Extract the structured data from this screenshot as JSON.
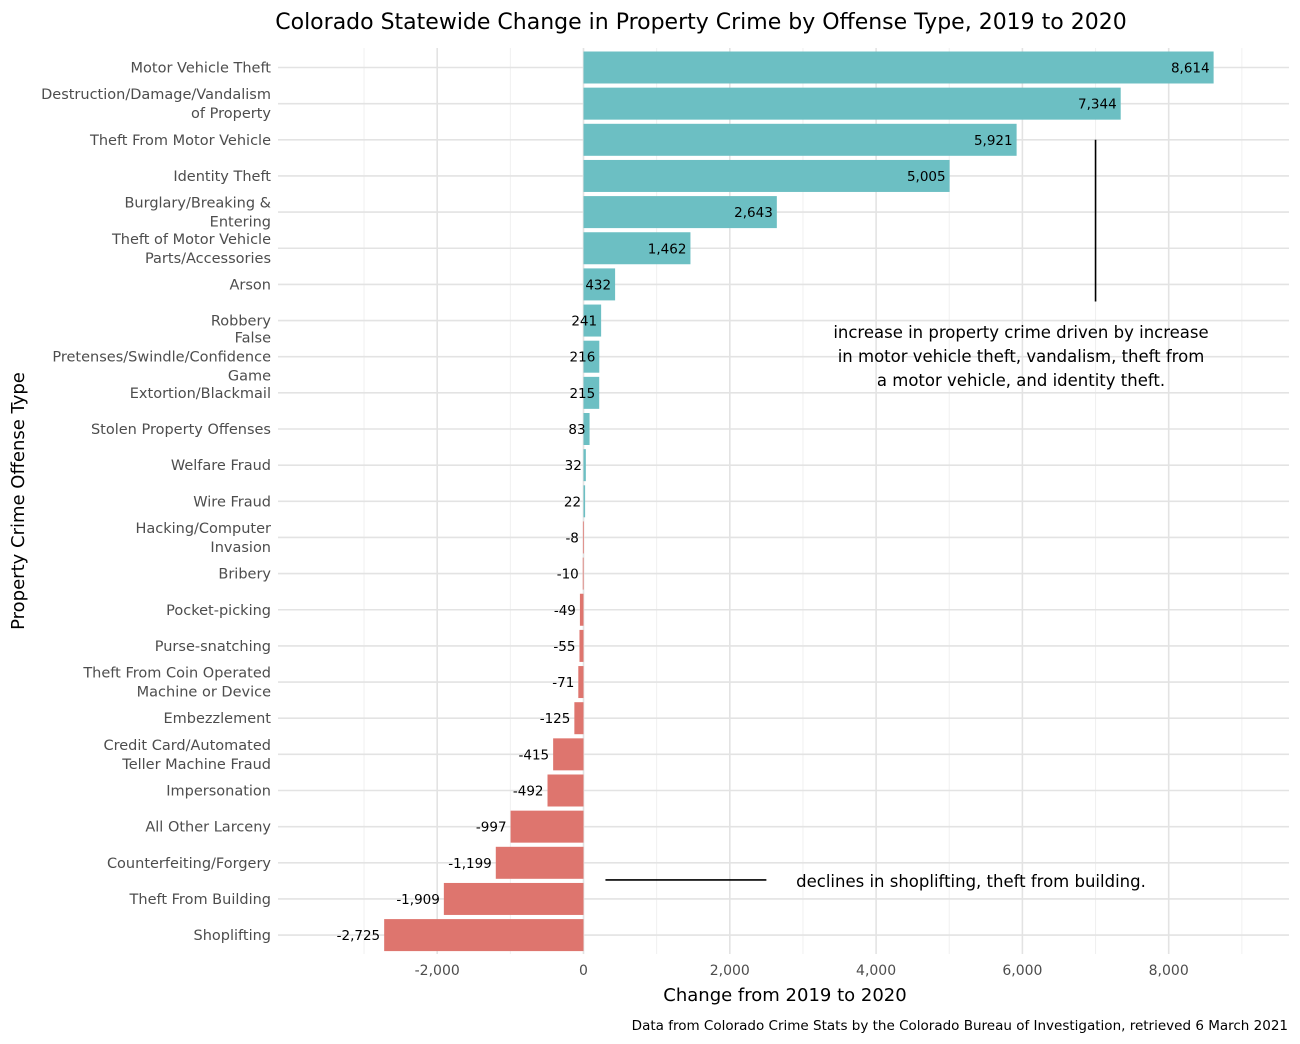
{
  "chart_data": {
    "type": "bar",
    "orientation": "horizontal",
    "title": "Colorado Statewide Change in Property Crime by Offense Type, 2019 to 2020",
    "xlabel": "Change from 2019 to 2020",
    "ylabel": "Property Crime Offense Type",
    "caption": "Data from Colorado Crime Stats by the Colorado Bureau of Investigation, retrieved 6 March 2021",
    "xlim": [
      -2725,
      8614
    ],
    "xticks": [
      -2000,
      0,
      2000,
      4000,
      6000,
      8000
    ],
    "xtick_labels": [
      "-2,000",
      "0",
      "2,000",
      "4,000",
      "6,000",
      "8,000"
    ],
    "grid": true,
    "colors": {
      "positive": "#6cbfc3",
      "negative": "#de756e"
    },
    "categories": [
      "Motor Vehicle Theft",
      "Destruction/Damage/Vandalism of Property",
      "Theft From Motor Vehicle",
      "Identity Theft",
      "Burglary/Breaking & Entering",
      "Theft of Motor Vehicle Parts/Accessories",
      "Arson",
      "Robbery",
      "False Pretenses/Swindle/Confidence Game",
      "Extortion/Blackmail",
      "Stolen Property Offenses",
      "Welfare Fraud",
      "Wire Fraud",
      "Hacking/Computer Invasion",
      "Bribery",
      "Pocket-picking",
      "Purse-snatching",
      "Theft From Coin Operated Machine or Device",
      "Embezzlement",
      "Credit Card/Automated Teller Machine Fraud",
      "Impersonation",
      "All Other Larceny",
      "Counterfeiting/Forgery",
      "Theft From Building",
      "Shoplifting"
    ],
    "category_label_lines": [
      [
        "Motor Vehicle Theft"
      ],
      [
        "Destruction/Damage/Vandalism",
        "of Property"
      ],
      [
        "Theft From Motor Vehicle"
      ],
      [
        "Identity Theft"
      ],
      [
        "Burglary/Breaking &",
        "Entering"
      ],
      [
        "Theft of Motor Vehicle",
        "Parts/Accessories"
      ],
      [
        "Arson"
      ],
      [
        "Robbery"
      ],
      [
        "False",
        "Pretenses/Swindle/Confidence",
        "Game"
      ],
      [
        "Extortion/Blackmail"
      ],
      [
        "Stolen Property Offenses"
      ],
      [
        "Welfare Fraud"
      ],
      [
        "Wire Fraud"
      ],
      [
        "Hacking/Computer",
        "Invasion"
      ],
      [
        "Bribery"
      ],
      [
        "Pocket-picking"
      ],
      [
        "Purse-snatching"
      ],
      [
        "Theft From Coin Operated",
        "Machine or Device"
      ],
      [
        "Embezzlement"
      ],
      [
        "Credit Card/Automated",
        "Teller Machine Fraud"
      ],
      [
        "Impersonation"
      ],
      [
        "All Other Larceny"
      ],
      [
        "Counterfeiting/Forgery"
      ],
      [
        "Theft From Building"
      ],
      [
        "Shoplifting"
      ]
    ],
    "values": [
      8614,
      7344,
      5921,
      5005,
      2643,
      1462,
      432,
      241,
      216,
      215,
      83,
      32,
      22,
      -8,
      -10,
      -49,
      -55,
      -71,
      -125,
      -415,
      -492,
      -997,
      -1199,
      -1909,
      -2725
    ],
    "value_labels": [
      "8,614",
      "7,344",
      "5,921",
      "5,005",
      "2,643",
      "1,462",
      "432",
      "241",
      "216",
      "215",
      "83",
      "32",
      "22",
      "-8",
      "-10",
      "-49",
      "-55",
      "-71",
      "-125",
      "-415",
      "-492",
      "-997",
      "-1,199",
      "-1,909",
      "-2,725"
    ],
    "annotations": [
      {
        "lines": [
          "increase in property crime driven by increase",
          "in motor vehicle theft, vandalism, theft from",
          "a motor vehicle, and identity theft."
        ],
        "segment_x": 7000,
        "segment_from_category": "Theft From Motor Vehicle",
        "segment_to_category": "Robbery"
      },
      {
        "lines": [
          "declines in shoplifting, theft from building."
        ],
        "segment_from_x": 300,
        "segment_to_x": 2500,
        "category": "Theft From Building"
      }
    ]
  }
}
